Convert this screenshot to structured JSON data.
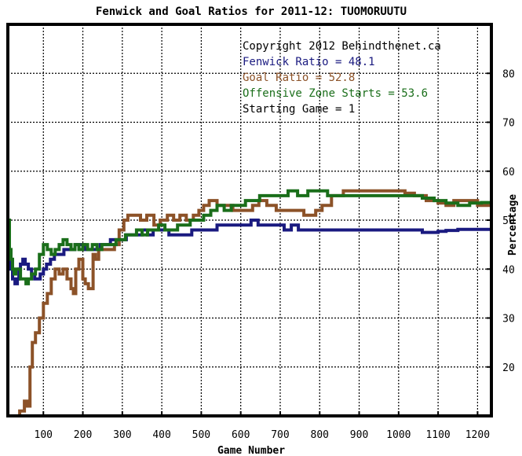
{
  "chart_data": {
    "type": "line",
    "title": "Fenwick and Goal Ratios for 2011-12: TUOMORUUTU",
    "xlabel": "Game Number",
    "ylabel": "Percentage",
    "xlim": [
      10,
      1235
    ],
    "ylim": [
      10,
      90
    ],
    "xticks": [
      100,
      200,
      300,
      400,
      500,
      600,
      700,
      800,
      900,
      1000,
      1100,
      1200
    ],
    "yticks": [
      20,
      30,
      40,
      50,
      60,
      70,
      80
    ],
    "xtick_labels": [
      "100",
      "200",
      "300",
      "400",
      "500",
      "600",
      "700",
      "800",
      "900",
      "1000",
      "1100",
      "1200"
    ],
    "ytick_labels": [
      "20",
      "30",
      "40",
      "50",
      "60",
      "70",
      "80"
    ],
    "grid": true,
    "legend_placement": "top-right",
    "info_lines": [
      {
        "text": "Copyright 2012 Behindthenet.ca",
        "color": "#000000"
      },
      {
        "text": "Fenwick Ratio = 48.1",
        "color": "#1a1a80"
      },
      {
        "text": "Goal Ratio = 52.8",
        "color": "#8c5228"
      },
      {
        "text": "Offensive Zone Starts = 53.6",
        "color": "#1a6e1a"
      },
      {
        "text": "Starting Game = 1",
        "color": "#000000"
      }
    ],
    "series": [
      {
        "name": "Fenwick Ratio",
        "color": "#1a1a80",
        "x": [
          10,
          14,
          18,
          22,
          28,
          34,
          38,
          42,
          48,
          54,
          62,
          70,
          78,
          86,
          92,
          100,
          108,
          118,
          128,
          140,
          152,
          166,
          180,
          192,
          204,
          216,
          230,
          244,
          258,
          270,
          284,
          298,
          310,
          322,
          336,
          350,
          364,
          378,
          390,
          404,
          418,
          432,
          446,
          460,
          476,
          492,
          508,
          524,
          540,
          556,
          572,
          590,
          608,
          626,
          644,
          660,
          676,
          692,
          710,
          728,
          746,
          764,
          782,
          800,
          830,
          860,
          900,
          950,
          1000,
          1040,
          1060,
          1080,
          1100,
          1120,
          1150,
          1180,
          1210,
          1235
        ],
        "y": [
          45,
          43,
          40,
          38,
          37,
          38,
          40,
          41,
          42,
          41,
          40,
          39,
          38,
          38,
          39,
          40,
          41,
          42,
          43,
          43,
          44,
          44,
          45,
          45,
          44,
          44,
          44,
          45,
          45,
          46,
          46,
          46,
          47,
          47,
          47,
          48,
          47,
          48,
          48,
          48,
          47,
          47,
          47,
          47,
          48,
          48,
          48,
          48,
          49,
          49,
          49,
          49,
          49,
          50,
          49,
          49,
          49,
          49,
          48,
          49,
          48,
          48,
          48,
          48,
          48,
          48,
          48,
          48,
          48,
          48,
          47.5,
          47.5,
          47.7,
          47.9,
          48.1,
          48.1,
          48.1,
          48.1
        ]
      },
      {
        "name": "Goal Ratio",
        "color": "#8c5228",
        "x": [
          10,
          40,
          52,
          60,
          66,
          72,
          80,
          90,
          100,
          110,
          120,
          130,
          140,
          150,
          160,
          170,
          176,
          182,
          190,
          200,
          206,
          214,
          226,
          232,
          240,
          250,
          262,
          280,
          292,
          304,
          314,
          330,
          346,
          362,
          380,
          396,
          414,
          430,
          446,
          462,
          480,
          494,
          506,
          520,
          540,
          560,
          580,
          610,
          630,
          646,
          666,
          690,
          720,
          760,
          790,
          806,
          830,
          860,
          890,
          950,
          1000,
          1016,
          1040,
          1070,
          1100,
          1120,
          1140,
          1170,
          1200,
          1235
        ],
        "y": [
          5,
          11,
          13,
          12,
          20,
          25,
          27,
          30,
          33,
          35,
          38,
          40,
          39,
          40,
          38,
          36,
          35,
          40,
          42,
          38,
          37,
          36,
          43,
          42,
          44,
          44,
          44,
          45,
          48,
          50,
          51,
          51,
          50,
          51,
          49,
          50,
          51,
          50,
          51,
          50,
          51,
          52,
          53,
          54,
          53,
          53,
          52,
          52,
          53,
          54,
          53,
          52,
          52,
          51,
          52,
          53,
          55,
          56,
          56,
          56,
          56,
          55.5,
          55,
          54,
          53.5,
          53,
          54,
          54,
          53,
          52.8
        ]
      },
      {
        "name": "Offensive Zone Starts",
        "color": "#1a6e1a",
        "x": [
          10,
          14,
          18,
          22,
          26,
          30,
          36,
          42,
          48,
          56,
          62,
          70,
          80,
          90,
          100,
          110,
          120,
          130,
          140,
          150,
          160,
          170,
          180,
          190,
          200,
          212,
          224,
          236,
          248,
          260,
          272,
          284,
          296,
          308,
          322,
          336,
          350,
          364,
          378,
          392,
          408,
          424,
          440,
          456,
          472,
          488,
          506,
          524,
          540,
          558,
          576,
          594,
          612,
          630,
          648,
          666,
          684,
          700,
          720,
          744,
          770,
          796,
          820,
          850,
          880,
          910,
          940,
          970,
          1000,
          1030,
          1060,
          1090,
          1120,
          1150,
          1180,
          1210,
          1235
        ],
        "y": [
          50,
          44,
          42,
          40,
          39,
          40,
          40,
          38,
          38,
          37,
          38,
          39,
          40,
          43,
          45,
          44,
          43,
          44,
          45,
          46,
          45,
          44,
          45,
          44,
          45,
          44,
          45,
          44,
          45,
          45,
          45,
          46,
          46,
          47,
          47,
          48,
          47,
          48,
          48,
          49,
          48,
          48,
          49,
          49,
          50,
          50,
          51,
          52,
          53,
          52,
          53,
          53,
          54,
          54,
          55,
          55,
          55,
          55,
          56,
          55,
          56,
          56,
          55,
          55,
          55,
          55,
          55,
          55,
          55,
          55,
          54.5,
          54,
          53.5,
          53,
          53.5,
          53.6,
          53.6
        ]
      }
    ]
  }
}
